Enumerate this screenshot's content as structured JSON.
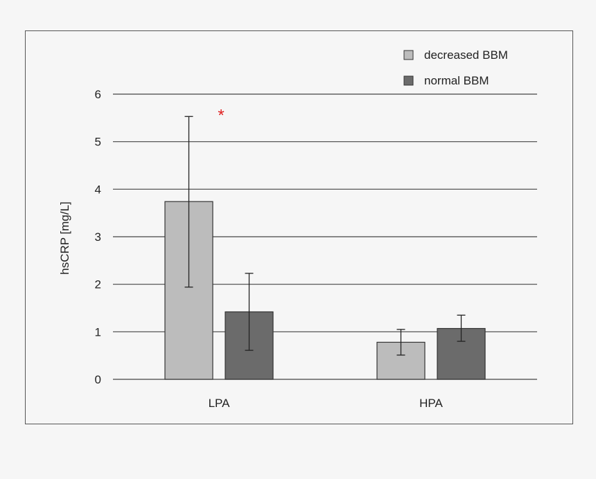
{
  "chart_data": {
    "type": "bar",
    "categories": [
      "LPA",
      "HPA"
    ],
    "series": [
      {
        "name": "decreased BBM",
        "color": "#bcbcbc",
        "values": [
          3.74,
          0.78
        ],
        "error_low": [
          1.94,
          0.51
        ],
        "error_high": [
          5.53,
          1.05
        ]
      },
      {
        "name": "normal BBM",
        "color": "#6b6b6b",
        "values": [
          1.42,
          1.07
        ],
        "error_low": [
          0.61,
          0.8
        ],
        "error_high": [
          2.23,
          1.35
        ]
      }
    ],
    "ylabel": "hsCRP [mg/L]",
    "ylim": [
      0,
      6
    ],
    "yticks": [
      "0",
      "1",
      "2",
      "3",
      "4",
      "5",
      "6"
    ],
    "grid": true,
    "legend": "top-right",
    "annotation": {
      "text": "*",
      "color": "#e02020",
      "category": "LPA",
      "y": 5.7
    }
  }
}
